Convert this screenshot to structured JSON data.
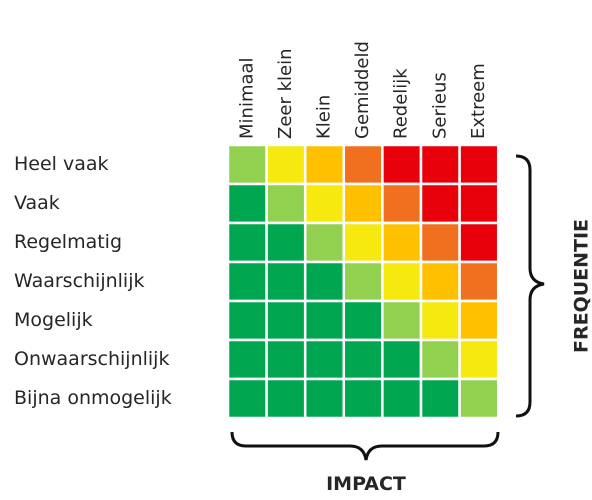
{
  "matrix": {
    "columns": [
      "Minimaal",
      "Zeer klein",
      "Klein",
      "Gemiddeld",
      "Redelijk",
      "Serieus",
      "Extreem"
    ],
    "rows": [
      "Heel vaak",
      "Vaak",
      "Regelmatig",
      "Waarschijnlijk",
      "Mogelijk",
      "Onwaarschijnlijk",
      "Bijna onmogelijk"
    ],
    "cells": [
      [
        "#92d050",
        "#f5e90f",
        "#ffc000",
        "#f07020",
        "#e8000b",
        "#e8000b",
        "#e8000b"
      ],
      [
        "#00a650",
        "#92d050",
        "#f5e90f",
        "#ffc000",
        "#f07020",
        "#e8000b",
        "#e8000b"
      ],
      [
        "#00a650",
        "#00a650",
        "#92d050",
        "#f5e90f",
        "#ffc000",
        "#f07020",
        "#e8000b"
      ],
      [
        "#00a650",
        "#00a650",
        "#00a650",
        "#92d050",
        "#f5e90f",
        "#ffc000",
        "#f07020"
      ],
      [
        "#00a650",
        "#00a650",
        "#00a650",
        "#00a650",
        "#92d050",
        "#f5e90f",
        "#ffc000"
      ],
      [
        "#00a650",
        "#00a650",
        "#00a650",
        "#00a650",
        "#00a650",
        "#92d050",
        "#f5e90f"
      ],
      [
        "#00a650",
        "#00a650",
        "#00a650",
        "#00a650",
        "#00a650",
        "#00a650",
        "#92d050"
      ]
    ],
    "x_axis_label": "IMPACT",
    "y_axis_label": "FREQUENTIE"
  }
}
